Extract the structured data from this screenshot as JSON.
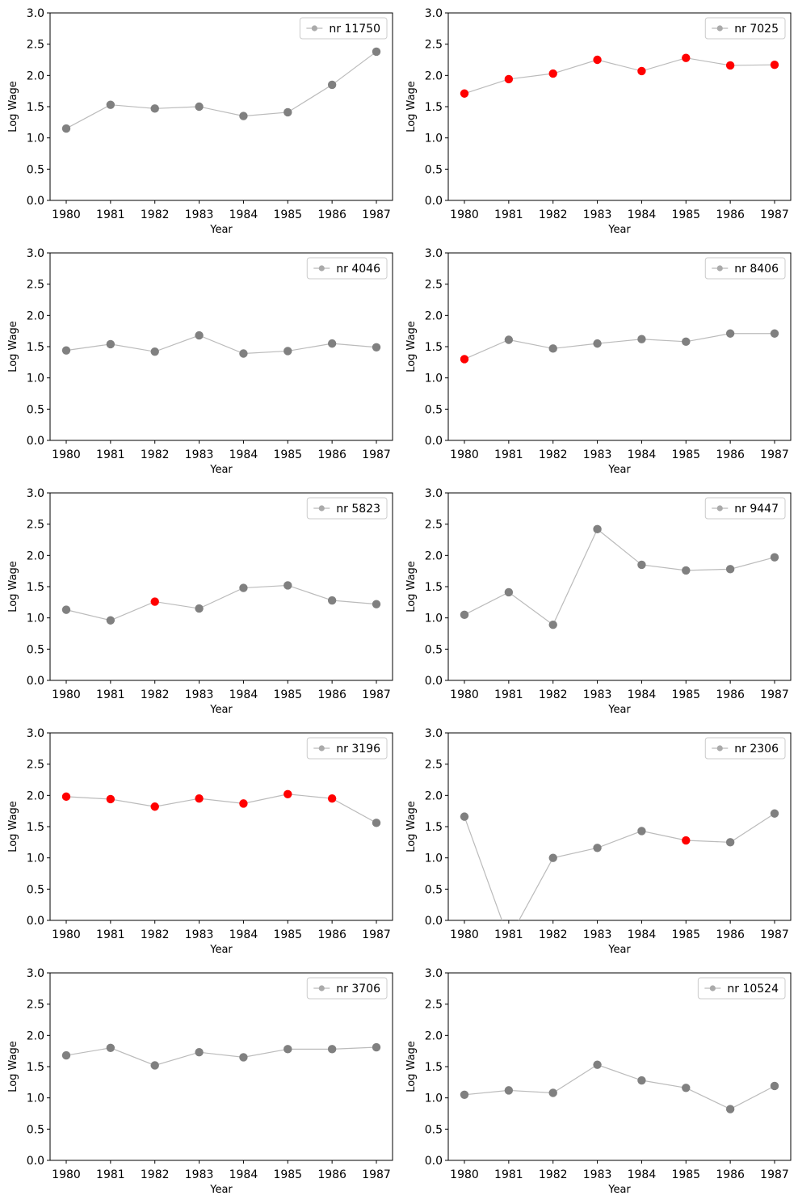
{
  "colors": {
    "line": "#bbbbbb",
    "point_normal": "#808080",
    "point_highlight": "#ff0000",
    "legend_marker": "#aaaaaa"
  },
  "chart_data": [
    {
      "type": "line",
      "xlabel": "Year",
      "ylabel": "Log Wage",
      "ylim": [
        0,
        3.0
      ],
      "legend_placement": "top-right",
      "series": [
        {
          "name": "nr 11750",
          "x": [
            1980,
            1981,
            1982,
            1983,
            1984,
            1985,
            1986,
            1987
          ],
          "values": [
            1.15,
            1.53,
            1.47,
            1.5,
            1.35,
            1.41,
            1.85,
            2.38
          ],
          "highlight": [
            false,
            false,
            false,
            false,
            false,
            false,
            false,
            false
          ]
        }
      ]
    },
    {
      "type": "line",
      "xlabel": "Year",
      "ylabel": "Log Wage",
      "ylim": [
        0,
        3.0
      ],
      "legend_placement": "top-right",
      "series": [
        {
          "name": "nr 7025",
          "x": [
            1980,
            1981,
            1982,
            1983,
            1984,
            1985,
            1986,
            1987
          ],
          "values": [
            1.71,
            1.94,
            2.03,
            2.25,
            2.07,
            2.28,
            2.16,
            2.17
          ],
          "highlight": [
            true,
            true,
            true,
            true,
            true,
            true,
            true,
            true
          ]
        }
      ]
    },
    {
      "type": "line",
      "xlabel": "Year",
      "ylabel": "Log Wage",
      "ylim": [
        0,
        3.0
      ],
      "legend_placement": "top-right",
      "series": [
        {
          "name": "nr 4046",
          "x": [
            1980,
            1981,
            1982,
            1983,
            1984,
            1985,
            1986,
            1987
          ],
          "values": [
            1.44,
            1.54,
            1.42,
            1.68,
            1.39,
            1.43,
            1.55,
            1.49
          ],
          "highlight": [
            false,
            false,
            false,
            false,
            false,
            false,
            false,
            false
          ]
        }
      ]
    },
    {
      "type": "line",
      "xlabel": "Year",
      "ylabel": "Log Wage",
      "ylim": [
        0,
        3.0
      ],
      "legend_placement": "top-right",
      "series": [
        {
          "name": "nr 8406",
          "x": [
            1980,
            1981,
            1982,
            1983,
            1984,
            1985,
            1986,
            1987
          ],
          "values": [
            1.3,
            1.61,
            1.47,
            1.55,
            1.62,
            1.58,
            1.71,
            1.71
          ],
          "highlight": [
            true,
            false,
            false,
            false,
            false,
            false,
            false,
            false
          ]
        }
      ]
    },
    {
      "type": "line",
      "xlabel": "Year",
      "ylabel": "Log Wage",
      "ylim": [
        0,
        3.0
      ],
      "legend_placement": "top-right",
      "series": [
        {
          "name": "nr 5823",
          "x": [
            1980,
            1981,
            1982,
            1983,
            1984,
            1985,
            1986,
            1987
          ],
          "values": [
            1.13,
            0.96,
            1.26,
            1.15,
            1.48,
            1.52,
            1.28,
            1.22
          ],
          "highlight": [
            false,
            false,
            true,
            false,
            false,
            false,
            false,
            false
          ]
        }
      ]
    },
    {
      "type": "line",
      "xlabel": "Year",
      "ylabel": "Log Wage",
      "ylim": [
        0,
        3.0
      ],
      "legend_placement": "top-right",
      "series": [
        {
          "name": "nr 9447",
          "x": [
            1980,
            1981,
            1982,
            1983,
            1984,
            1985,
            1986,
            1987
          ],
          "values": [
            1.05,
            1.41,
            0.89,
            2.42,
            1.85,
            1.76,
            1.78,
            1.97
          ],
          "highlight": [
            false,
            false,
            false,
            false,
            false,
            false,
            false,
            false
          ]
        }
      ]
    },
    {
      "type": "line",
      "xlabel": "Year",
      "ylabel": "Log Wage",
      "ylim": [
        0,
        3.0
      ],
      "legend_placement": "top-right",
      "series": [
        {
          "name": "nr 3196",
          "x": [
            1980,
            1981,
            1982,
            1983,
            1984,
            1985,
            1986,
            1987
          ],
          "values": [
            1.98,
            1.94,
            1.82,
            1.95,
            1.87,
            2.02,
            1.95,
            1.56
          ],
          "highlight": [
            true,
            true,
            true,
            true,
            true,
            true,
            true,
            false
          ]
        }
      ]
    },
    {
      "type": "line",
      "xlabel": "Year",
      "ylabel": "Log Wage",
      "ylim": [
        0,
        3.0
      ],
      "legend_placement": "top-right",
      "series": [
        {
          "name": "nr 2306",
          "x": [
            1980,
            1981,
            1982,
            1983,
            1984,
            1985,
            1986,
            1987
          ],
          "values": [
            1.66,
            -0.3,
            1.0,
            1.16,
            1.43,
            1.28,
            1.25,
            1.71
          ],
          "highlight": [
            false,
            false,
            false,
            false,
            false,
            true,
            false,
            false
          ]
        }
      ]
    },
    {
      "type": "line",
      "xlabel": "Year",
      "ylabel": "Log Wage",
      "ylim": [
        0,
        3.0
      ],
      "legend_placement": "top-right",
      "series": [
        {
          "name": "nr 3706",
          "x": [
            1980,
            1981,
            1982,
            1983,
            1984,
            1985,
            1986,
            1987
          ],
          "values": [
            1.68,
            1.8,
            1.52,
            1.73,
            1.65,
            1.78,
            1.78,
            1.81
          ],
          "highlight": [
            false,
            false,
            false,
            false,
            false,
            false,
            false,
            false
          ]
        }
      ]
    },
    {
      "type": "line",
      "xlabel": "Year",
      "ylabel": "Log Wage",
      "ylim": [
        0,
        3.0
      ],
      "legend_placement": "top-right",
      "series": [
        {
          "name": "nr 10524",
          "x": [
            1980,
            1981,
            1982,
            1983,
            1984,
            1985,
            1986,
            1987
          ],
          "values": [
            1.05,
            1.12,
            1.08,
            1.53,
            1.28,
            1.16,
            0.82,
            1.19
          ],
          "highlight": [
            false,
            false,
            false,
            false,
            false,
            false,
            false,
            false
          ]
        }
      ]
    }
  ]
}
